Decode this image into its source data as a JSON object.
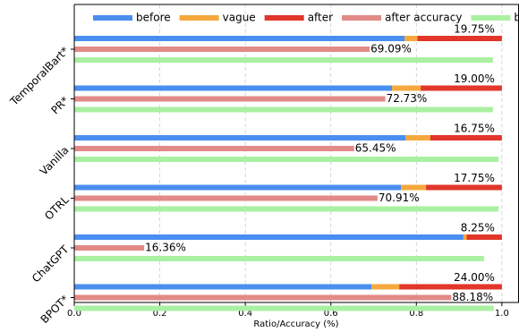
{
  "chart_data": {
    "type": "bar",
    "orientation": "horizontal",
    "categories": [
      "TemporalBart*",
      "PR*",
      "Vanilla",
      "OTRL",
      "ChatGPT",
      "BPOT*"
    ],
    "series": [
      {
        "name": "before",
        "color": "#4a8ef0",
        "stack": true,
        "values": [
          0.7725,
          0.743,
          0.775,
          0.764,
          0.91,
          0.695
        ]
      },
      {
        "name": "vague",
        "color": "#f5a93c",
        "stack": true,
        "values": [
          0.03,
          0.067,
          0.0575,
          0.0585,
          0.0075,
          0.065
        ]
      },
      {
        "name": "after",
        "color": "#e2362b",
        "stack": true,
        "values": [
          0.1975,
          0.19,
          0.1675,
          0.1775,
          0.0825,
          0.24
        ],
        "value_labels": [
          "19.75%",
          "19.00%",
          "16.75%",
          "17.75%",
          "8.25%",
          "24.00%"
        ]
      },
      {
        "name": "after accuracy",
        "color": "#e28a87",
        "values": [
          0.6909,
          0.7273,
          0.6545,
          0.7091,
          0.1636,
          0.8818
        ],
        "value_labels": [
          "69.09%",
          "72.73%",
          "65.45%",
          "70.91%",
          "16.36%",
          "88.18%"
        ]
      },
      {
        "name": "before accuracy",
        "color": "#aaf0a2",
        "values": [
          0.979,
          0.979,
          0.992,
          0.992,
          0.958,
          0.981
        ]
      }
    ],
    "xlabel": "Ratio/Accuracy (%)",
    "xlim": [
      0,
      1.04
    ],
    "xticks": [
      {
        "value": 0,
        "label": "0.0"
      },
      {
        "value": 0.2,
        "label": "0.2"
      },
      {
        "value": 0.4,
        "label": "0.4"
      },
      {
        "value": 0.6,
        "label": "0.6"
      },
      {
        "value": 0.8,
        "label": "0.8"
      },
      {
        "value": 1,
        "label": "1.0"
      }
    ],
    "grid": true,
    "legend": "top"
  }
}
